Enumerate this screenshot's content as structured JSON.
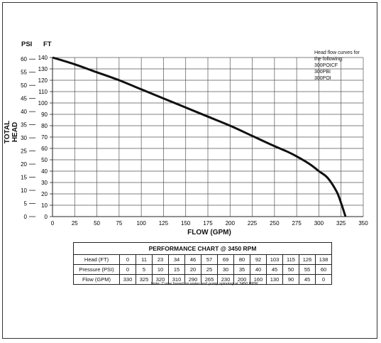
{
  "chart_data": {
    "type": "line",
    "left_axis_unit": "PSI",
    "right_axis_unit": "FT",
    "ylabel": "TOTAL HEAD",
    "xlabel": "FLOW (GPM)",
    "x_ticks": [
      0,
      25,
      50,
      75,
      100,
      125,
      150,
      175,
      200,
      225,
      250,
      275,
      300,
      325,
      350
    ],
    "xlim": [
      0,
      350
    ],
    "psi_ticks": [
      0,
      5,
      10,
      15,
      20,
      25,
      30,
      35,
      40,
      45,
      50,
      55,
      60
    ],
    "ft_ticks": [
      0,
      10,
      20,
      30,
      40,
      50,
      60,
      70,
      80,
      90,
      100,
      110,
      120,
      130,
      140
    ],
    "ylim_ft": [
      0,
      140
    ],
    "grid": true,
    "series": [
      {
        "x": [
          0,
          25,
          50,
          75,
          100,
          125,
          150,
          175,
          200,
          225,
          250,
          265,
          275,
          290,
          300,
          310,
          320,
          325,
          330
        ],
        "y": [
          140,
          134,
          127,
          120,
          112,
          104,
          96,
          88,
          80,
          71,
          62,
          57,
          53,
          46,
          40,
          34,
          22,
          12,
          0
        ]
      }
    ],
    "legend_note": [
      "Head flow curves for",
      "the following:",
      "300POICF",
      "300PBI",
      "300POI"
    ]
  },
  "table": {
    "title": "PERFORMANCE CHART @ 3450 RPM",
    "rows": [
      {
        "label": "Head (FT)",
        "values": [
          "0",
          "11",
          "23",
          "34",
          "46",
          "57",
          "69",
          "80",
          "92",
          "103",
          "115",
          "126",
          "138"
        ]
      },
      {
        "label": "Pressure (PSI)",
        "values": [
          "0",
          "5",
          "10",
          "15",
          "20",
          "25",
          "30",
          "35",
          "40",
          "45",
          "50",
          "55",
          "60"
        ]
      },
      {
        "label": "Flow (GPM)",
        "values": [
          "330",
          "325",
          "320",
          "310",
          "290",
          "265",
          "230",
          "200",
          "160",
          "130",
          "90",
          "45",
          "0"
        ]
      }
    ],
    "note": "Note: Curve based on water and pump spinning at 3450 RPM"
  }
}
